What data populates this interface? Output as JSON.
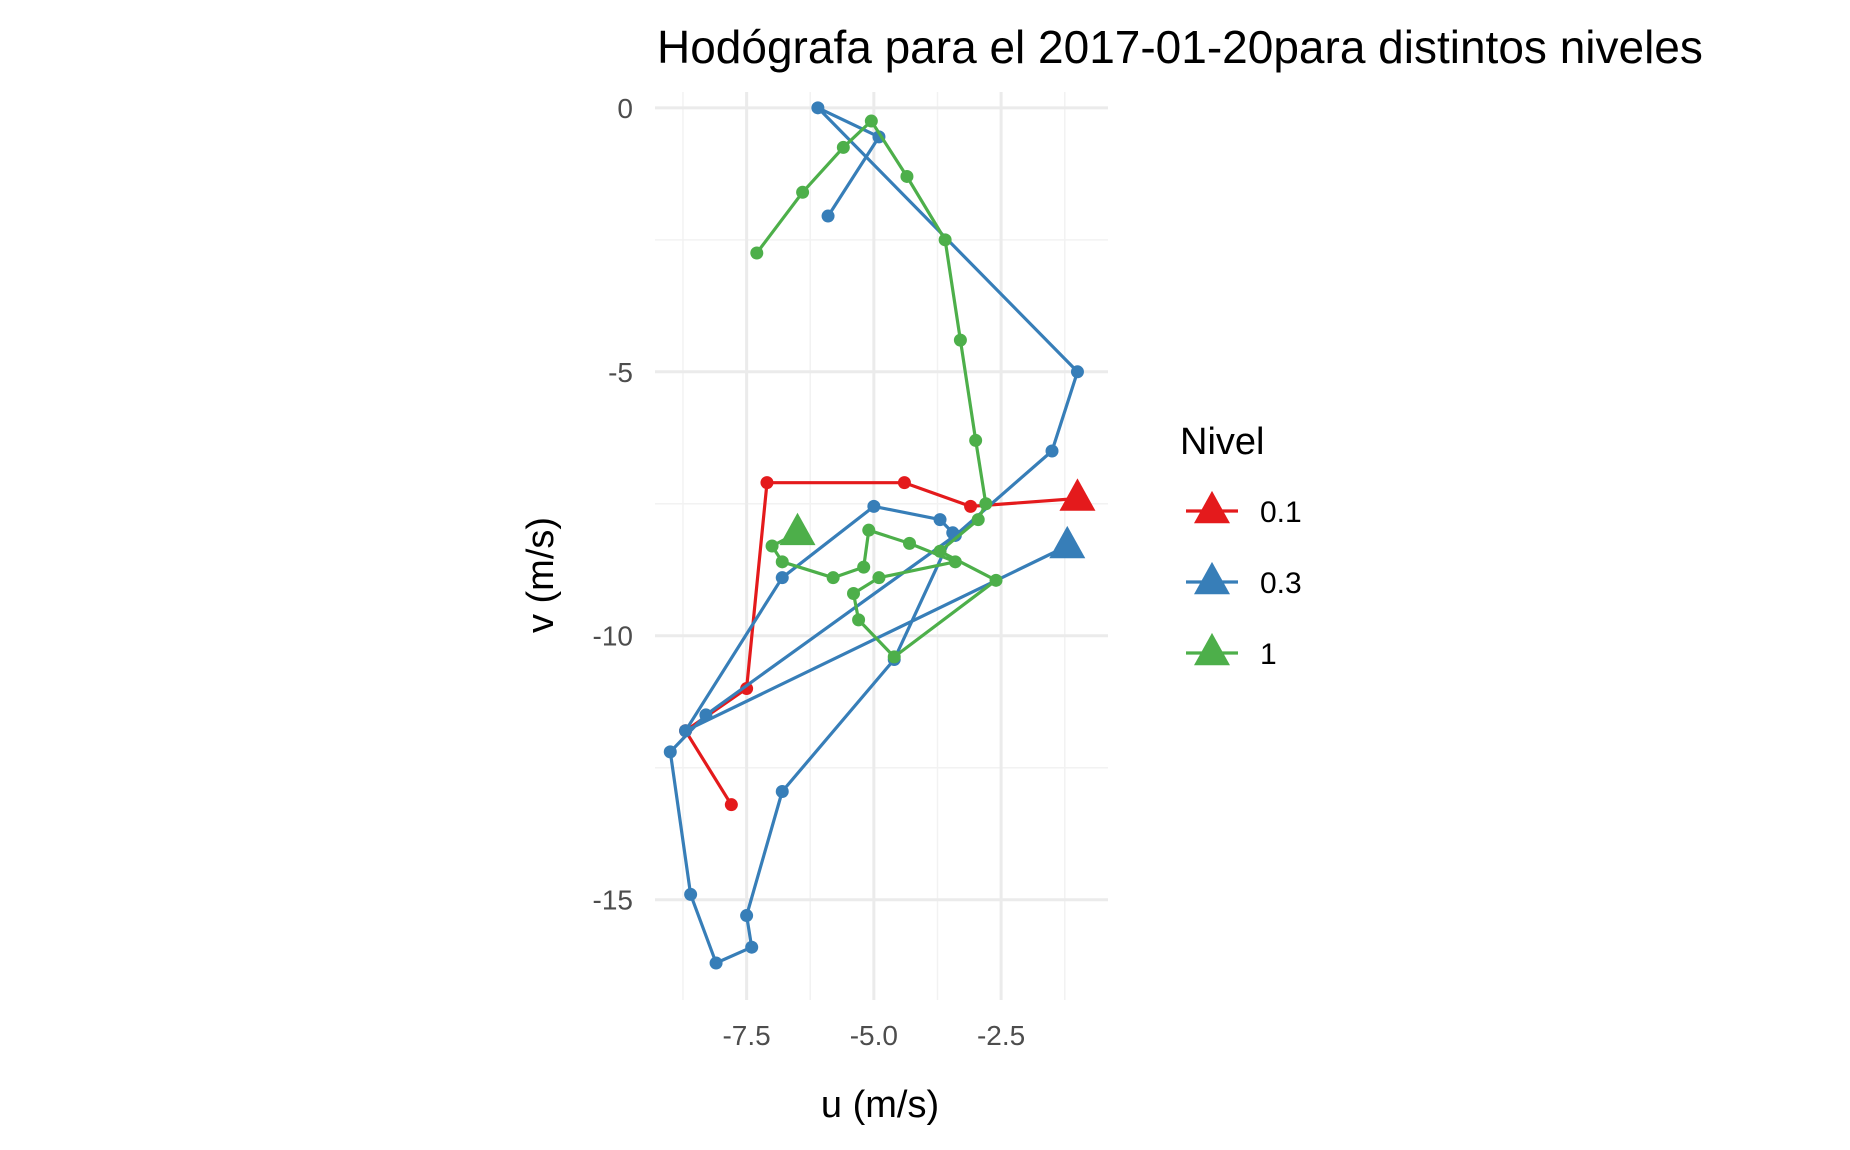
{
  "chart_data": {
    "type": "line",
    "title": "Hodógrafa para el 2017-01-20para distintos niveles",
    "xlabel": "u (m/s)",
    "ylabel": "v (m/s)",
    "xlim": [
      -9.3,
      -0.4
    ],
    "ylim": [
      -16.9,
      0.3
    ],
    "x_ticks": [
      -7.5,
      -5.0,
      -2.5
    ],
    "x_tick_labels": [
      "-7.5",
      "-5.0",
      "-2.5"
    ],
    "y_ticks": [
      0,
      -5,
      -10,
      -15
    ],
    "y_tick_labels": [
      "0",
      "-5",
      "-10",
      "-15"
    ],
    "grid": true,
    "legend": {
      "title": "Nivel",
      "placement": "right"
    },
    "series": [
      {
        "name": "0.1",
        "color": "#e41a1c",
        "points": [
          [
            -7.8,
            -13.2
          ],
          [
            -8.7,
            -11.8
          ],
          [
            -7.5,
            -11.0
          ],
          [
            -7.1,
            -7.1
          ],
          [
            -4.4,
            -7.1
          ],
          [
            -3.1,
            -7.55
          ],
          [
            -1.0,
            -7.4
          ]
        ]
      },
      {
        "name": "0.3",
        "color": "#377eb8",
        "points": [
          [
            -5.9,
            -2.05
          ],
          [
            -4.9,
            -0.55
          ],
          [
            -6.1,
            -0.0
          ],
          [
            -1.0,
            -5.0
          ],
          [
            -1.5,
            -6.5
          ],
          [
            -3.4,
            -8.1
          ],
          [
            -8.3,
            -11.5
          ],
          [
            -9.0,
            -12.2
          ],
          [
            -8.6,
            -14.9
          ],
          [
            -8.1,
            -16.2
          ],
          [
            -7.4,
            -15.9
          ],
          [
            -7.5,
            -15.3
          ],
          [
            -6.8,
            -12.95
          ],
          [
            -4.6,
            -10.45
          ],
          [
            -3.45,
            -8.05
          ],
          [
            -3.7,
            -7.8
          ],
          [
            -5.0,
            -7.55
          ],
          [
            -6.8,
            -8.9
          ],
          [
            -8.7,
            -11.8
          ],
          [
            -1.2,
            -8.3
          ]
        ]
      },
      {
        "name": "1",
        "color": "#4daf4a",
        "points": [
          [
            -7.3,
            -2.75
          ],
          [
            -6.4,
            -1.6
          ],
          [
            -5.6,
            -0.75
          ],
          [
            -5.05,
            -0.25
          ],
          [
            -4.35,
            -1.3
          ],
          [
            -3.6,
            -2.5
          ],
          [
            -3.3,
            -4.4
          ],
          [
            -3.0,
            -6.3
          ],
          [
            -2.8,
            -7.5
          ],
          [
            -2.95,
            -7.8
          ],
          [
            -3.7,
            -8.4
          ],
          [
            -2.6,
            -8.95
          ],
          [
            -4.6,
            -10.4
          ],
          [
            -5.3,
            -9.7
          ],
          [
            -5.4,
            -9.2
          ],
          [
            -4.9,
            -8.9
          ],
          [
            -3.4,
            -8.6
          ],
          [
            -4.3,
            -8.25
          ],
          [
            -5.1,
            -8.0
          ],
          [
            -5.2,
            -8.7
          ],
          [
            -5.8,
            -8.9
          ],
          [
            -6.8,
            -8.6
          ],
          [
            -7.0,
            -8.3
          ],
          [
            -6.5,
            -8.05
          ]
        ]
      }
    ]
  }
}
